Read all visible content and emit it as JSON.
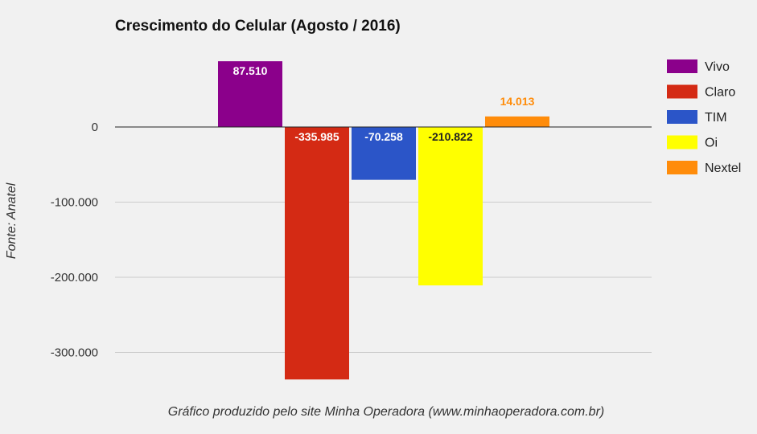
{
  "chart_data": {
    "type": "bar",
    "title": "Crescimento do Celular (Agosto / 2016)",
    "xlabel": "",
    "ylabel": "Fonte: Anatel",
    "footer": "Gráfico produzido pelo site Minha Operadora (www.minhaoperadora.com.br)",
    "ylim": [
      -335985,
      87510
    ],
    "yticks": [
      0,
      -100000,
      -200000,
      -300000
    ],
    "ytick_labels": [
      "0",
      "-100.000",
      "-200.000",
      "-300.000"
    ],
    "grid": true,
    "legend_position": "right",
    "series": [
      {
        "name": "Vivo",
        "value": 87510,
        "label": "87.510",
        "color": "#8b008b",
        "label_color": "#ffffff",
        "label_placement": "inside"
      },
      {
        "name": "Claro",
        "value": -335985,
        "label": "-335.985",
        "color": "#d42a14",
        "label_color": "#ffffff",
        "label_placement": "inside"
      },
      {
        "name": "TIM",
        "value": -70258,
        "label": "-70.258",
        "color": "#2b55c8",
        "label_color": "#ffffff",
        "label_placement": "inside"
      },
      {
        "name": "Oi",
        "value": -210822,
        "label": "-210.822",
        "color": "#ffff00",
        "label_color": "#222222",
        "label_placement": "inside"
      },
      {
        "name": "Nextel",
        "value": 14013,
        "label": "14.013",
        "color": "#ff8c0a",
        "label_color": "#ff8c0a",
        "label_placement": "above"
      }
    ]
  }
}
